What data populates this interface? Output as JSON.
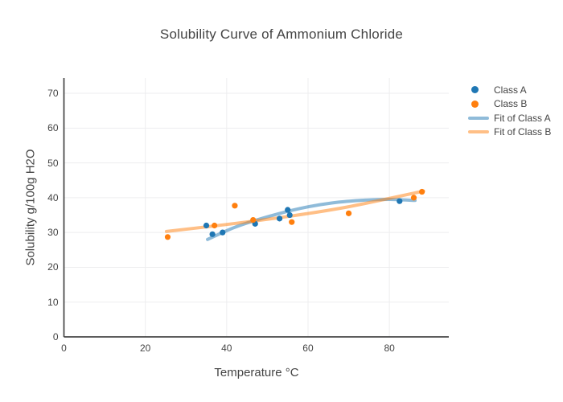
{
  "chart_data": {
    "type": "scatter",
    "title": "Solubility Curve of Ammonium Chloride",
    "xlabel": "Temperature °C",
    "ylabel": "Solubility g/100g H2O",
    "xlim": [
      0,
      94.6
    ],
    "ylim": [
      0,
      74.4
    ],
    "x_ticks": [
      0,
      20,
      40,
      60,
      80
    ],
    "y_ticks": [
      0,
      10,
      20,
      30,
      40,
      50,
      60,
      70
    ],
    "grid": true,
    "legend_position": "right",
    "axis_color": "#444444",
    "grid_color": "#ededef",
    "text_color": "#444444",
    "series": [
      {
        "name": "Class A",
        "kind": "markers",
        "color": "#1f77b4",
        "opacity": 1,
        "points": [
          [
            35,
            32
          ],
          [
            36.5,
            29.5
          ],
          [
            39,
            30
          ],
          [
            47,
            32.5
          ],
          [
            53,
            34
          ],
          [
            55,
            36.5
          ],
          [
            55.5,
            35
          ],
          [
            82.5,
            39
          ]
        ]
      },
      {
        "name": "Class B",
        "kind": "markers",
        "color": "#ff7f0e",
        "opacity": 1,
        "points": [
          [
            25.5,
            28.7
          ],
          [
            37,
            32
          ],
          [
            42,
            37.7
          ],
          [
            46.5,
            33.6
          ],
          [
            56,
            33
          ],
          [
            70,
            35.5
          ],
          [
            86,
            40
          ],
          [
            88,
            41.7
          ]
        ]
      },
      {
        "name": "Fit of Class A",
        "kind": "line",
        "color": "#1f77b4",
        "opacity": 0.5,
        "points": [
          [
            35.3,
            28
          ],
          [
            42,
            31.5
          ],
          [
            50,
            34.5
          ],
          [
            58,
            36.9
          ],
          [
            66,
            38.5
          ],
          [
            74,
            39.3
          ],
          [
            80,
            39.5
          ],
          [
            86.3,
            39.2
          ]
        ]
      },
      {
        "name": "Fit of Class B",
        "kind": "line",
        "color": "#ff7f0e",
        "opacity": 0.5,
        "points": [
          [
            25.2,
            30.3
          ],
          [
            40,
            32.3
          ],
          [
            55,
            34.6
          ],
          [
            70,
            37.4
          ],
          [
            88.4,
            41.9
          ]
        ]
      }
    ]
  }
}
